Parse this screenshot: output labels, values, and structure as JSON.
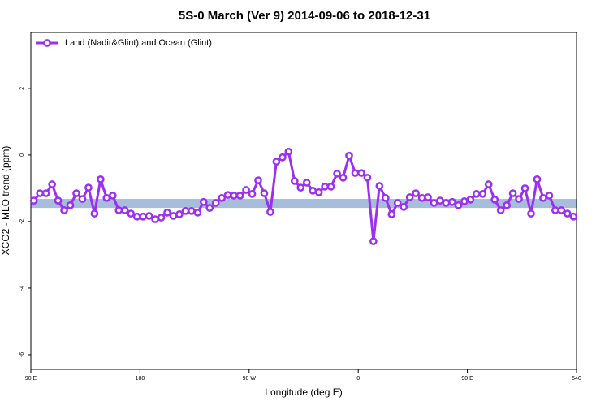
{
  "chart_data": {
    "type": "line",
    "title": "5S-0 March (Ver 9)   2014-09-06 to 2018-12-31",
    "xlabel": "Longitude (deg E)",
    "ylabel": "XCO2 - MLO trend (ppm)",
    "xlim": [
      90,
      540
    ],
    "ylim": [
      -6.44,
      3.68
    ],
    "xticks": [
      {
        "value": 90,
        "label": "90 E"
      },
      180,
      {
        "value": 270,
        "label": "90 W"
      },
      {
        "value": 360,
        "label": "0"
      },
      {
        "value": 450,
        "label": "90 E"
      },
      540
    ],
    "yticks": [
      2,
      0,
      -2,
      -4,
      -6
    ],
    "legend": "top-left",
    "band": {
      "color": "#a6bddb",
      "range": [
        -1.59,
        -1.32
      ]
    },
    "x": [
      92.5,
      97.5,
      102.5,
      107.5,
      112.5,
      117.5,
      122.5,
      127.5,
      132.5,
      137.5,
      142.5,
      147.5,
      152.5,
      157.5,
      162.5,
      167.5,
      172.5,
      177.5,
      182.5,
      187.5,
      192.5,
      197.5,
      202.5,
      207.5,
      212.5,
      217.5,
      222.5,
      227.5,
      232.5,
      237.5,
      242.5,
      247.5,
      252.5,
      257.5,
      262.5,
      267.5,
      272.5,
      277.5,
      282.5,
      287.5,
      292.5,
      297.5,
      302.5,
      307.5,
      312.5,
      317.5,
      322.5,
      327.5,
      332.5,
      337.5,
      342.5,
      347.5,
      352.5,
      357.5,
      362.5,
      367.5,
      372.5,
      377.5,
      382.5,
      387.5,
      392.5,
      397.5,
      402.5,
      407.5,
      412.5,
      417.5,
      422.5,
      427.5,
      432.5,
      437.5,
      442.5,
      447.5,
      452.5,
      457.5,
      462.5,
      467.5,
      472.5,
      477.5,
      482.5,
      487.5,
      492.5,
      497.5,
      502.5,
      507.5,
      512.5,
      517.5,
      522.5,
      527.5,
      532.5,
      537.5
    ],
    "series": [
      {
        "name": "Land (Nadir&Glint) and Ocean (Glint)",
        "color": "#9b30f0",
        "values": [
          -1.37,
          -1.15,
          -1.15,
          -0.88,
          -1.37,
          -1.66,
          -1.51,
          -1.15,
          -1.32,
          -0.98,
          -1.76,
          -0.73,
          -1.29,
          -1.22,
          -1.66,
          -1.66,
          -1.76,
          -1.85,
          -1.85,
          -1.83,
          -1.93,
          -1.88,
          -1.73,
          -1.83,
          -1.78,
          -1.68,
          -1.68,
          -1.73,
          -1.41,
          -1.59,
          -1.44,
          -1.29,
          -1.2,
          -1.22,
          -1.22,
          -1.05,
          -1.17,
          -0.76,
          -1.15,
          -1.71,
          -0.2,
          -0.07,
          0.1,
          -0.78,
          -0.98,
          -0.83,
          -1.07,
          -1.12,
          -0.95,
          -0.95,
          -0.56,
          -0.68,
          -0.02,
          -0.54,
          -0.54,
          -0.68,
          -2.59,
          -0.93,
          -1.29,
          -1.78,
          -1.44,
          -1.56,
          -1.27,
          -1.15,
          -1.29,
          -1.27,
          -1.44,
          -1.37,
          -1.44,
          -1.41,
          -1.51,
          -1.39,
          -1.34,
          -1.17,
          -1.17,
          -0.88,
          -1.34,
          -1.66,
          -1.51,
          -1.15,
          -1.32,
          -1.0,
          -1.76,
          -0.73,
          -1.29,
          -1.22,
          -1.66,
          -1.66,
          -1.76,
          -1.85
        ]
      }
    ]
  }
}
